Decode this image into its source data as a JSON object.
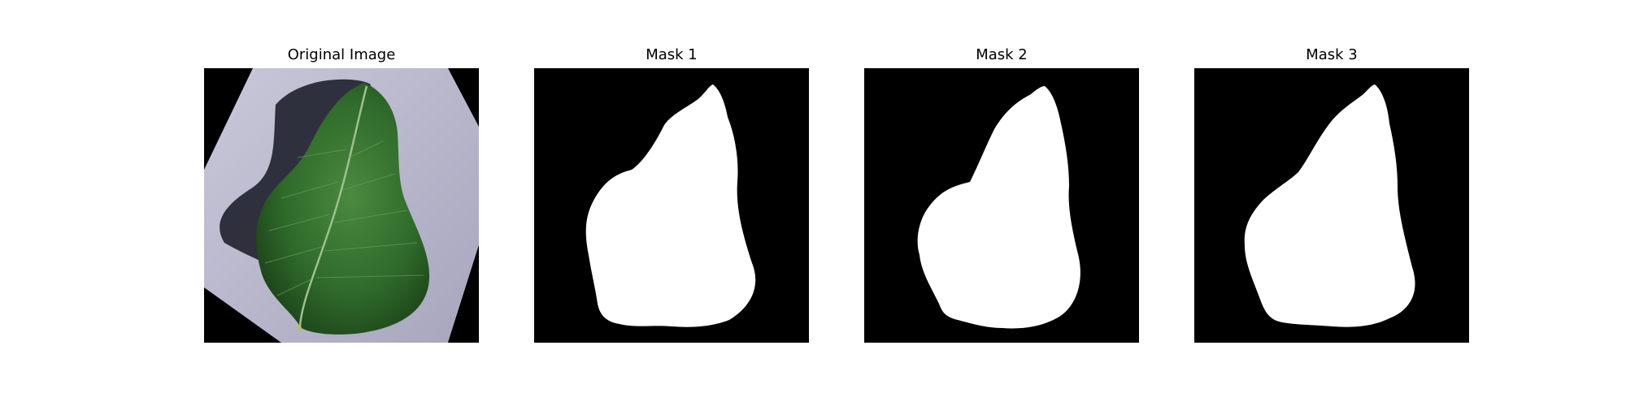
{
  "figure": {
    "panels": [
      {
        "title": "Original Image",
        "kind": "photo"
      },
      {
        "title": "Mask 1",
        "kind": "mask"
      },
      {
        "title": "Mask 2",
        "kind": "mask"
      },
      {
        "title": "Mask 3",
        "kind": "mask"
      }
    ]
  },
  "colors": {
    "mask_background": "#000000",
    "mask_foreground": "#ffffff",
    "photo_surface": "#b8b7cc",
    "photo_shadow": "#232430",
    "leaf_dark": "#1f4a1c",
    "leaf_mid": "#3d7a35",
    "leaf_vein": "#9fbf8f"
  }
}
